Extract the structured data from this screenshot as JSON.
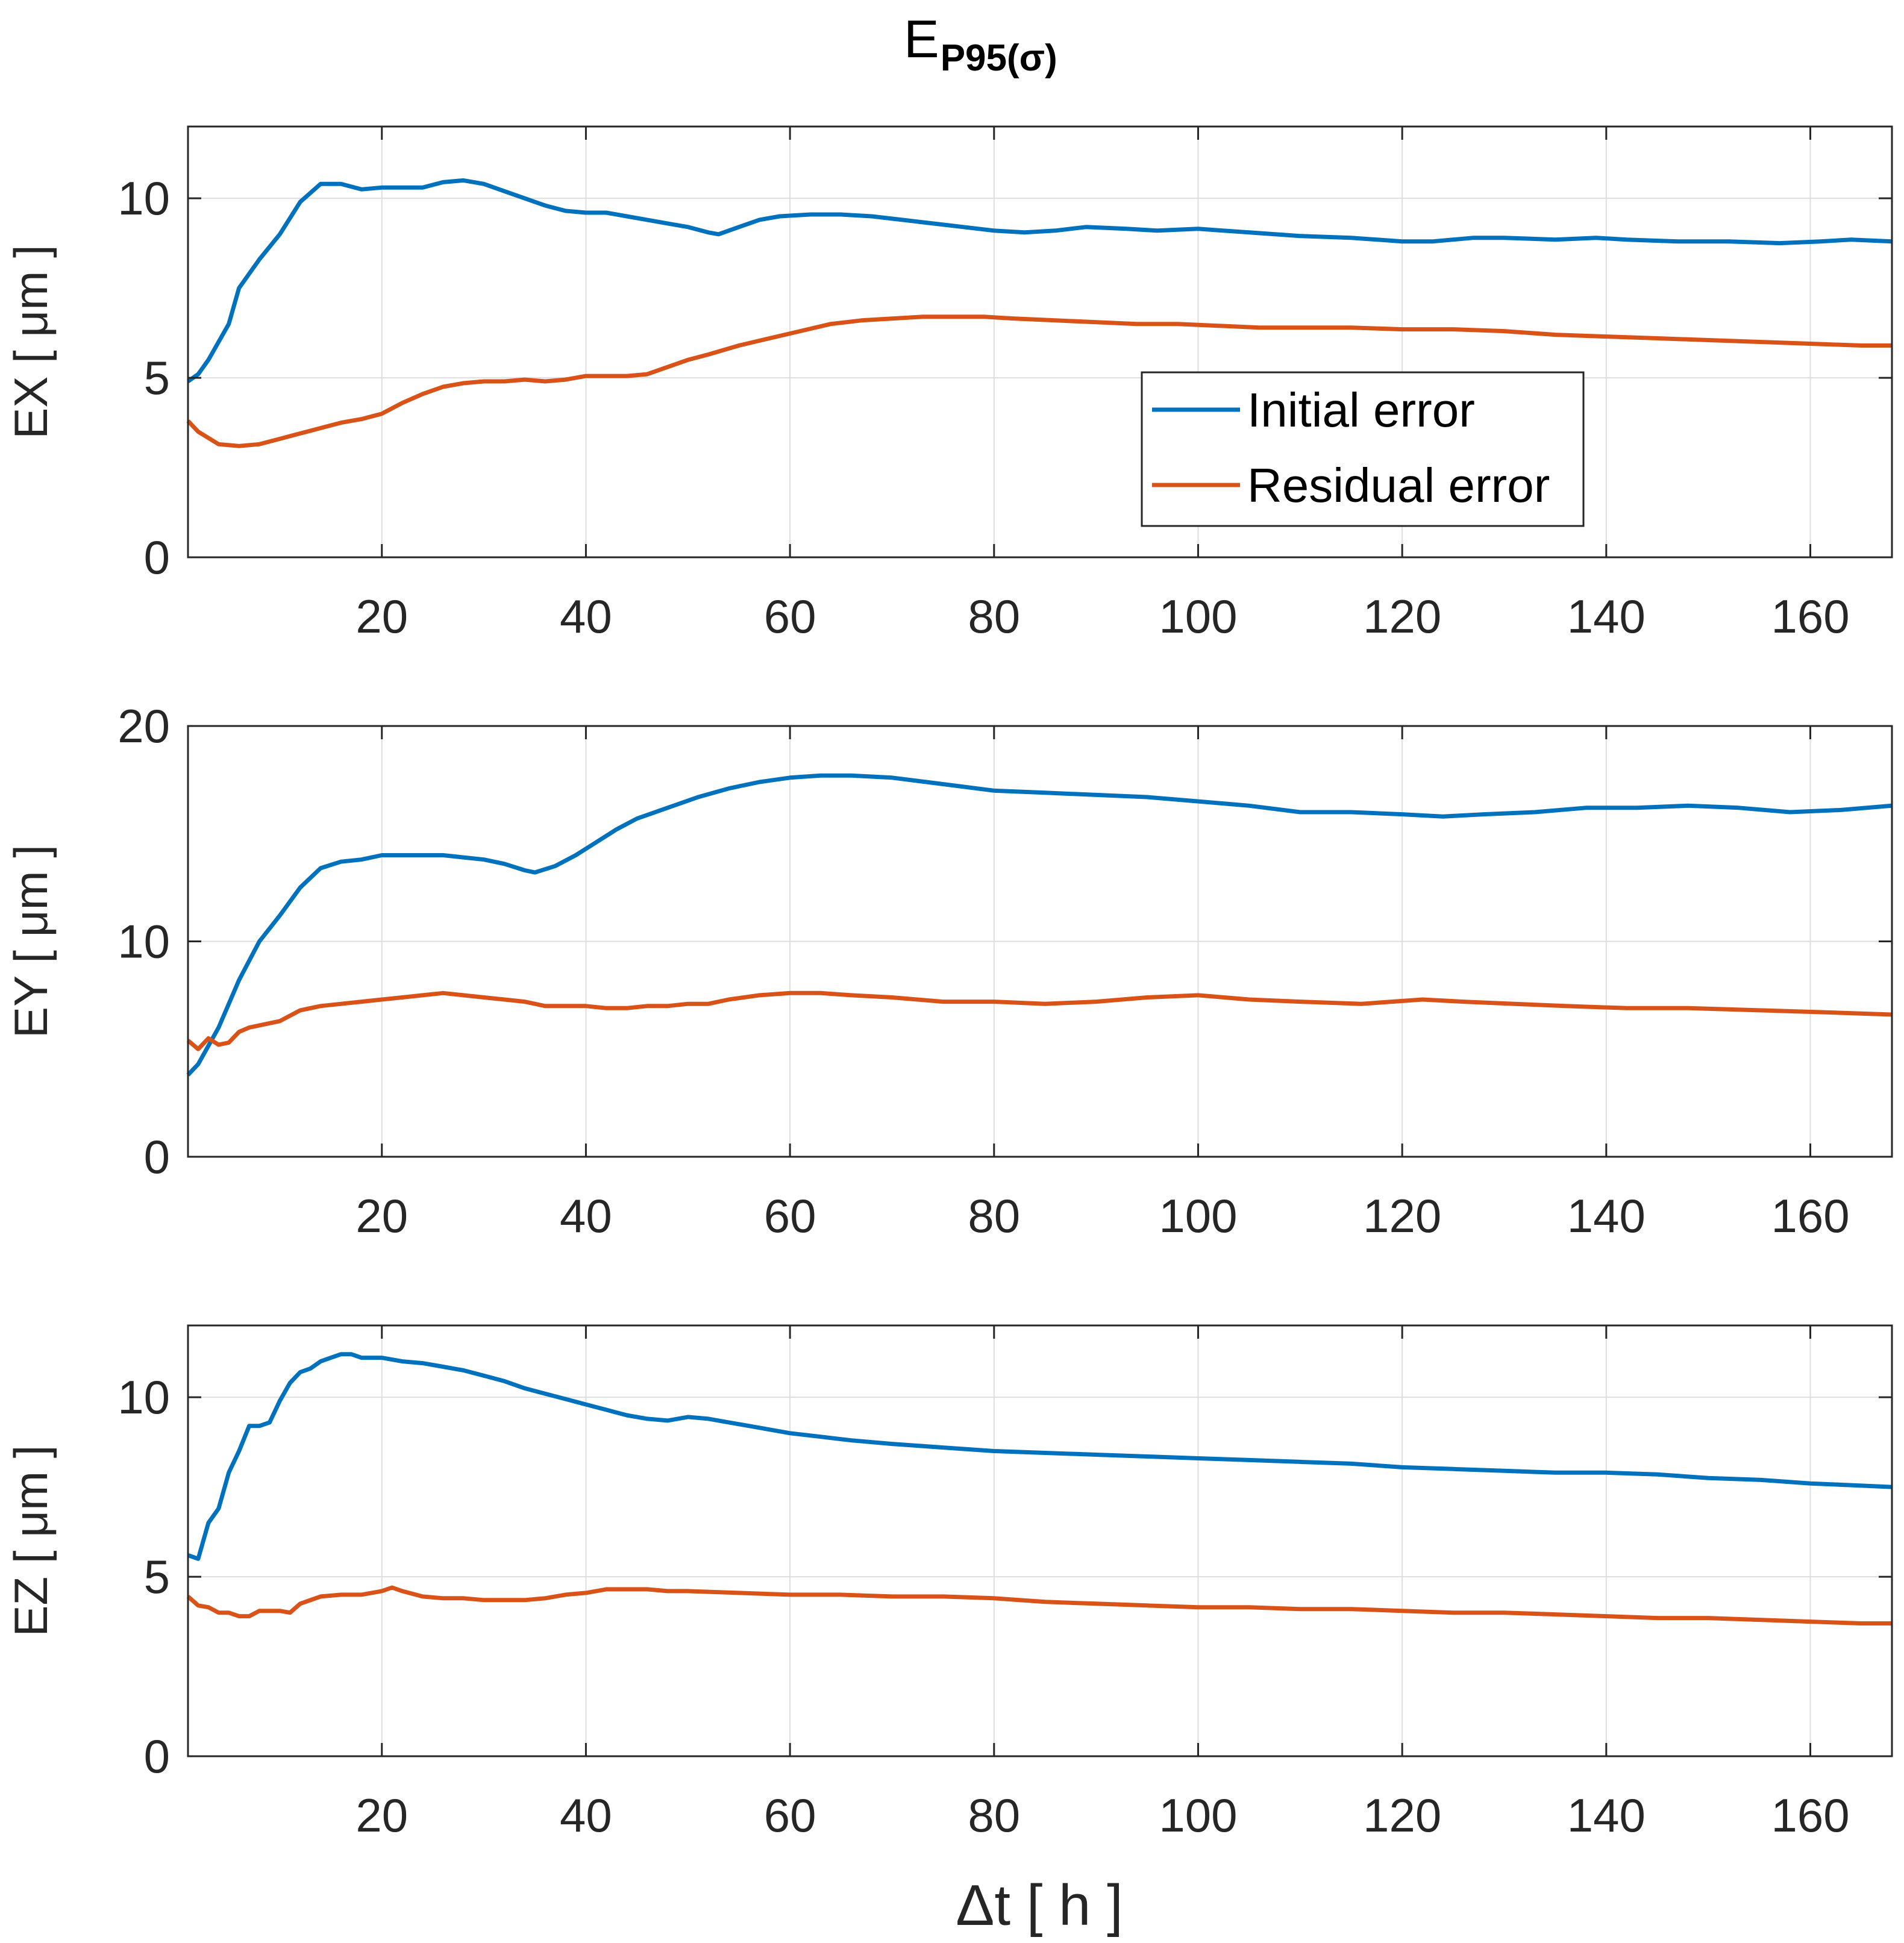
{
  "figure": {
    "title_main": "E",
    "title_sub": "P95(σ)",
    "xlabel": "Δt [ h ]"
  },
  "legend": {
    "entries": [
      "Initial error",
      "Residual error"
    ]
  },
  "colors": {
    "initial": "#0072BD",
    "residual": "#D95319"
  },
  "chart_data": [
    {
      "type": "line",
      "title": "E_P95(σ)",
      "ylabel": "EX [ μm ]",
      "xlim": [
        1,
        168
      ],
      "ylim": [
        0,
        12
      ],
      "xticks": [
        20,
        40,
        60,
        80,
        100,
        120,
        140,
        160
      ],
      "yticks": [
        0,
        5,
        10
      ],
      "grid": true,
      "legend_position": "right-middle",
      "series": [
        {
          "name": "Initial error",
          "x": [
            1,
            2,
            3,
            5,
            6,
            8,
            10,
            12,
            14,
            16,
            18,
            20,
            22,
            24,
            26,
            28,
            30,
            32,
            34,
            36,
            38,
            40,
            42,
            44,
            46,
            48,
            50,
            52,
            53,
            55,
            57,
            59,
            62,
            65,
            68,
            71,
            74,
            77,
            80,
            83,
            86,
            89,
            93,
            96,
            100,
            105,
            110,
            115,
            120,
            123,
            127,
            130,
            135,
            139,
            142,
            147,
            152,
            157,
            161,
            164,
            168
          ],
          "y": [
            4.9,
            5.1,
            5.5,
            6.5,
            7.5,
            8.3,
            9.0,
            9.9,
            10.4,
            10.4,
            10.25,
            10.3,
            10.3,
            10.3,
            10.45,
            10.5,
            10.4,
            10.2,
            10.0,
            9.8,
            9.65,
            9.6,
            9.6,
            9.5,
            9.4,
            9.3,
            9.2,
            9.05,
            9.0,
            9.2,
            9.4,
            9.5,
            9.55,
            9.55,
            9.5,
            9.4,
            9.3,
            9.2,
            9.1,
            9.05,
            9.1,
            9.2,
            9.15,
            9.1,
            9.15,
            9.05,
            8.95,
            8.9,
            8.8,
            8.8,
            8.9,
            8.9,
            8.85,
            8.9,
            8.85,
            8.8,
            8.8,
            8.75,
            8.8,
            8.85,
            8.8
          ]
        },
        {
          "name": "Residual error",
          "x": [
            1,
            2,
            4,
            6,
            8,
            10,
            12,
            14,
            16,
            18,
            20,
            22,
            24,
            26,
            28,
            30,
            32,
            34,
            36,
            38,
            40,
            42,
            44,
            46,
            48,
            50,
            52,
            55,
            58,
            61,
            64,
            67,
            70,
            73,
            76,
            79,
            82,
            86,
            90,
            94,
            98,
            102,
            106,
            110,
            115,
            120,
            125,
            130,
            135,
            140,
            145,
            150,
            155,
            160,
            165,
            168
          ],
          "y": [
            3.8,
            3.5,
            3.15,
            3.1,
            3.15,
            3.3,
            3.45,
            3.6,
            3.75,
            3.85,
            4.0,
            4.3,
            4.55,
            4.75,
            4.85,
            4.9,
            4.9,
            4.95,
            4.9,
            4.95,
            5.05,
            5.05,
            5.05,
            5.1,
            5.3,
            5.5,
            5.65,
            5.9,
            6.1,
            6.3,
            6.5,
            6.6,
            6.65,
            6.7,
            6.7,
            6.7,
            6.65,
            6.6,
            6.55,
            6.5,
            6.5,
            6.45,
            6.4,
            6.4,
            6.4,
            6.35,
            6.35,
            6.3,
            6.2,
            6.15,
            6.1,
            6.05,
            6.0,
            5.95,
            5.9,
            5.9
          ]
        }
      ]
    },
    {
      "type": "line",
      "title": "",
      "ylabel": "EY [ μm ]",
      "xlim": [
        1,
        168
      ],
      "ylim": [
        0,
        20
      ],
      "xticks": [
        20,
        40,
        60,
        80,
        100,
        120,
        140,
        160
      ],
      "yticks": [
        0,
        10,
        20
      ],
      "grid": true,
      "series": [
        {
          "name": "Initial error",
          "x": [
            1,
            2,
            4,
            6,
            8,
            10,
            12,
            14,
            16,
            18,
            20,
            22,
            24,
            26,
            28,
            30,
            32,
            34,
            35,
            37,
            39,
            41,
            43,
            45,
            48,
            51,
            54,
            57,
            60,
            63,
            66,
            70,
            75,
            80,
            85,
            90,
            95,
            100,
            105,
            110,
            115,
            120,
            124,
            128,
            133,
            138,
            143,
            148,
            153,
            158,
            163,
            168
          ],
          "y": [
            3.8,
            4.3,
            6.0,
            8.2,
            10.0,
            11.2,
            12.5,
            13.4,
            13.7,
            13.8,
            14.0,
            14.0,
            14.0,
            14.0,
            13.9,
            13.8,
            13.6,
            13.3,
            13.2,
            13.5,
            14.0,
            14.6,
            15.2,
            15.7,
            16.2,
            16.7,
            17.1,
            17.4,
            17.6,
            17.7,
            17.7,
            17.6,
            17.3,
            17.0,
            16.9,
            16.8,
            16.7,
            16.5,
            16.3,
            16.0,
            16.0,
            15.9,
            15.8,
            15.9,
            16.0,
            16.2,
            16.2,
            16.3,
            16.2,
            16.0,
            16.1,
            16.3
          ]
        },
        {
          "name": "Residual error",
          "x": [
            1,
            2,
            3,
            4,
            5,
            6,
            7,
            8,
            10,
            12,
            14,
            16,
            18,
            20,
            22,
            24,
            26,
            28,
            30,
            32,
            34,
            36,
            38,
            40,
            42,
            44,
            46,
            48,
            50,
            52,
            54,
            57,
            60,
            63,
            66,
            70,
            75,
            80,
            85,
            90,
            95,
            100,
            105,
            110,
            116,
            122,
            126,
            131,
            136,
            142,
            148,
            155,
            162,
            168
          ],
          "y": [
            5.4,
            5.0,
            5.5,
            5.2,
            5.3,
            5.8,
            6.0,
            6.1,
            6.3,
            6.8,
            7.0,
            7.1,
            7.2,
            7.3,
            7.4,
            7.5,
            7.6,
            7.5,
            7.4,
            7.3,
            7.2,
            7.0,
            7.0,
            7.0,
            6.9,
            6.9,
            7.0,
            7.0,
            7.1,
            7.1,
            7.3,
            7.5,
            7.6,
            7.6,
            7.5,
            7.4,
            7.2,
            7.2,
            7.1,
            7.2,
            7.4,
            7.5,
            7.3,
            7.2,
            7.1,
            7.3,
            7.2,
            7.1,
            7.0,
            6.9,
            6.9,
            6.8,
            6.7,
            6.6
          ]
        }
      ]
    },
    {
      "type": "line",
      "title": "",
      "ylabel": "EZ [ μm ]",
      "xlim": [
        1,
        168
      ],
      "ylim": [
        0,
        12
      ],
      "xticks": [
        20,
        40,
        60,
        80,
        100,
        120,
        140,
        160
      ],
      "yticks": [
        0,
        5,
        10
      ],
      "grid": true,
      "series": [
        {
          "name": "Initial error",
          "x": [
            1,
            2,
            3,
            4,
            5,
            6,
            7,
            8,
            9,
            10,
            11,
            12,
            13,
            14,
            15,
            16,
            17,
            18,
            20,
            22,
            24,
            26,
            28,
            30,
            32,
            34,
            36,
            38,
            40,
            42,
            44,
            46,
            48,
            50,
            52,
            54,
            56,
            58,
            60,
            63,
            66,
            70,
            75,
            80,
            85,
            90,
            95,
            100,
            105,
            110,
            115,
            120,
            125,
            130,
            135,
            140,
            145,
            150,
            155,
            160,
            164,
            168
          ],
          "y": [
            5.6,
            5.5,
            6.5,
            6.9,
            7.9,
            8.5,
            9.2,
            9.2,
            9.3,
            9.9,
            10.4,
            10.7,
            10.8,
            11.0,
            11.1,
            11.2,
            11.2,
            11.1,
            11.1,
            11.0,
            10.95,
            10.85,
            10.75,
            10.6,
            10.45,
            10.25,
            10.1,
            9.95,
            9.8,
            9.65,
            9.5,
            9.4,
            9.35,
            9.45,
            9.4,
            9.3,
            9.2,
            9.1,
            9.0,
            8.9,
            8.8,
            8.7,
            8.6,
            8.5,
            8.45,
            8.4,
            8.35,
            8.3,
            8.25,
            8.2,
            8.15,
            8.05,
            8.0,
            7.95,
            7.9,
            7.9,
            7.85,
            7.75,
            7.7,
            7.6,
            7.55,
            7.5
          ]
        },
        {
          "name": "Residual error",
          "x": [
            1,
            2,
            3,
            4,
            5,
            6,
            7,
            8,
            10,
            11,
            12,
            14,
            16,
            18,
            20,
            21,
            22,
            24,
            26,
            28,
            30,
            32,
            34,
            36,
            38,
            40,
            42,
            44,
            46,
            48,
            50,
            55,
            60,
            65,
            70,
            75,
            80,
            85,
            90,
            95,
            100,
            105,
            110,
            115,
            120,
            125,
            130,
            135,
            140,
            145,
            150,
            155,
            160,
            165,
            168
          ],
          "y": [
            4.45,
            4.2,
            4.15,
            4.0,
            4.0,
            3.9,
            3.9,
            4.05,
            4.05,
            4.0,
            4.25,
            4.45,
            4.5,
            4.5,
            4.6,
            4.7,
            4.6,
            4.45,
            4.4,
            4.4,
            4.35,
            4.35,
            4.35,
            4.4,
            4.5,
            4.55,
            4.65,
            4.65,
            4.65,
            4.6,
            4.6,
            4.55,
            4.5,
            4.5,
            4.45,
            4.45,
            4.4,
            4.3,
            4.25,
            4.2,
            4.15,
            4.15,
            4.1,
            4.1,
            4.05,
            4.0,
            4.0,
            3.95,
            3.9,
            3.85,
            3.85,
            3.8,
            3.75,
            3.7,
            3.7
          ]
        }
      ]
    }
  ]
}
